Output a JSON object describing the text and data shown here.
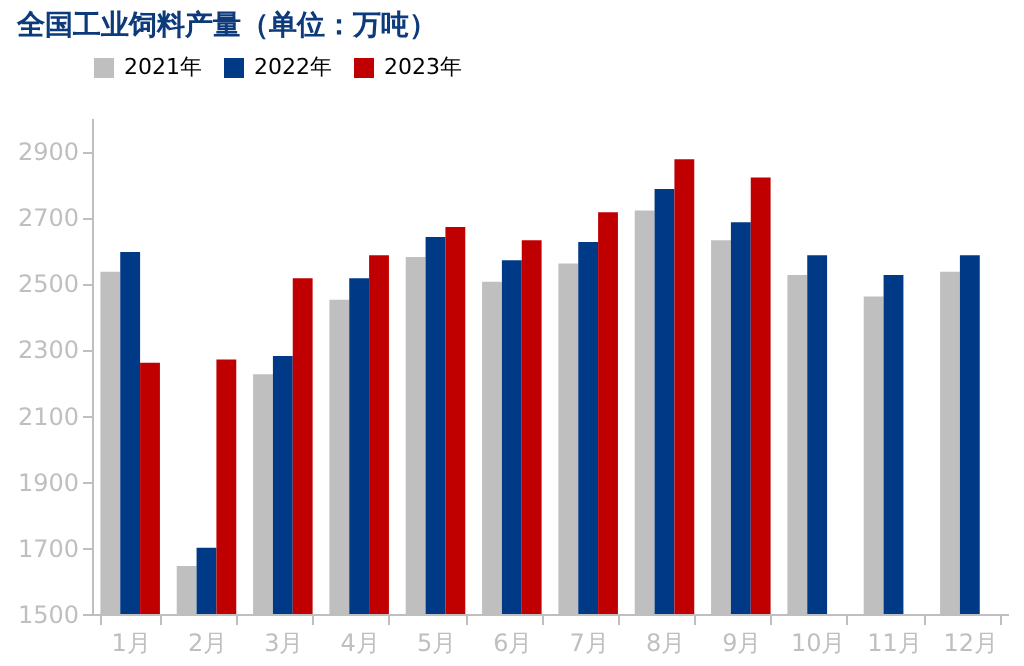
{
  "chart_data": {
    "type": "bar",
    "title": "全国工业饲料产量（单位：万吨）",
    "categories": [
      "1月",
      "2月",
      "3月",
      "4月",
      "5月",
      "6月",
      "7月",
      "8月",
      "9月",
      "10月",
      "11月",
      "12月"
    ],
    "series": [
      {
        "name": "2021年",
        "color": "#bfbfbf",
        "values": [
          2535,
          1645,
          2225,
          2450,
          2580,
          2505,
          2560,
          2720,
          2630,
          2525,
          2460,
          2535
        ]
      },
      {
        "name": "2022年",
        "color": "#003a87",
        "values": [
          2595,
          1700,
          2280,
          2515,
          2640,
          2570,
          2625,
          2785,
          2685,
          2585,
          2525,
          2585
        ]
      },
      {
        "name": "2023年",
        "color": "#c00000",
        "values": [
          2260,
          2270,
          2515,
          2585,
          2670,
          2630,
          2715,
          2875,
          2820,
          null,
          null,
          null
        ]
      }
    ],
    "ylim": [
      1500,
      3000
    ],
    "yticks": [
      1500,
      1700,
      1900,
      2100,
      2300,
      2500,
      2700,
      2900
    ],
    "grid": false,
    "legend": "top"
  }
}
